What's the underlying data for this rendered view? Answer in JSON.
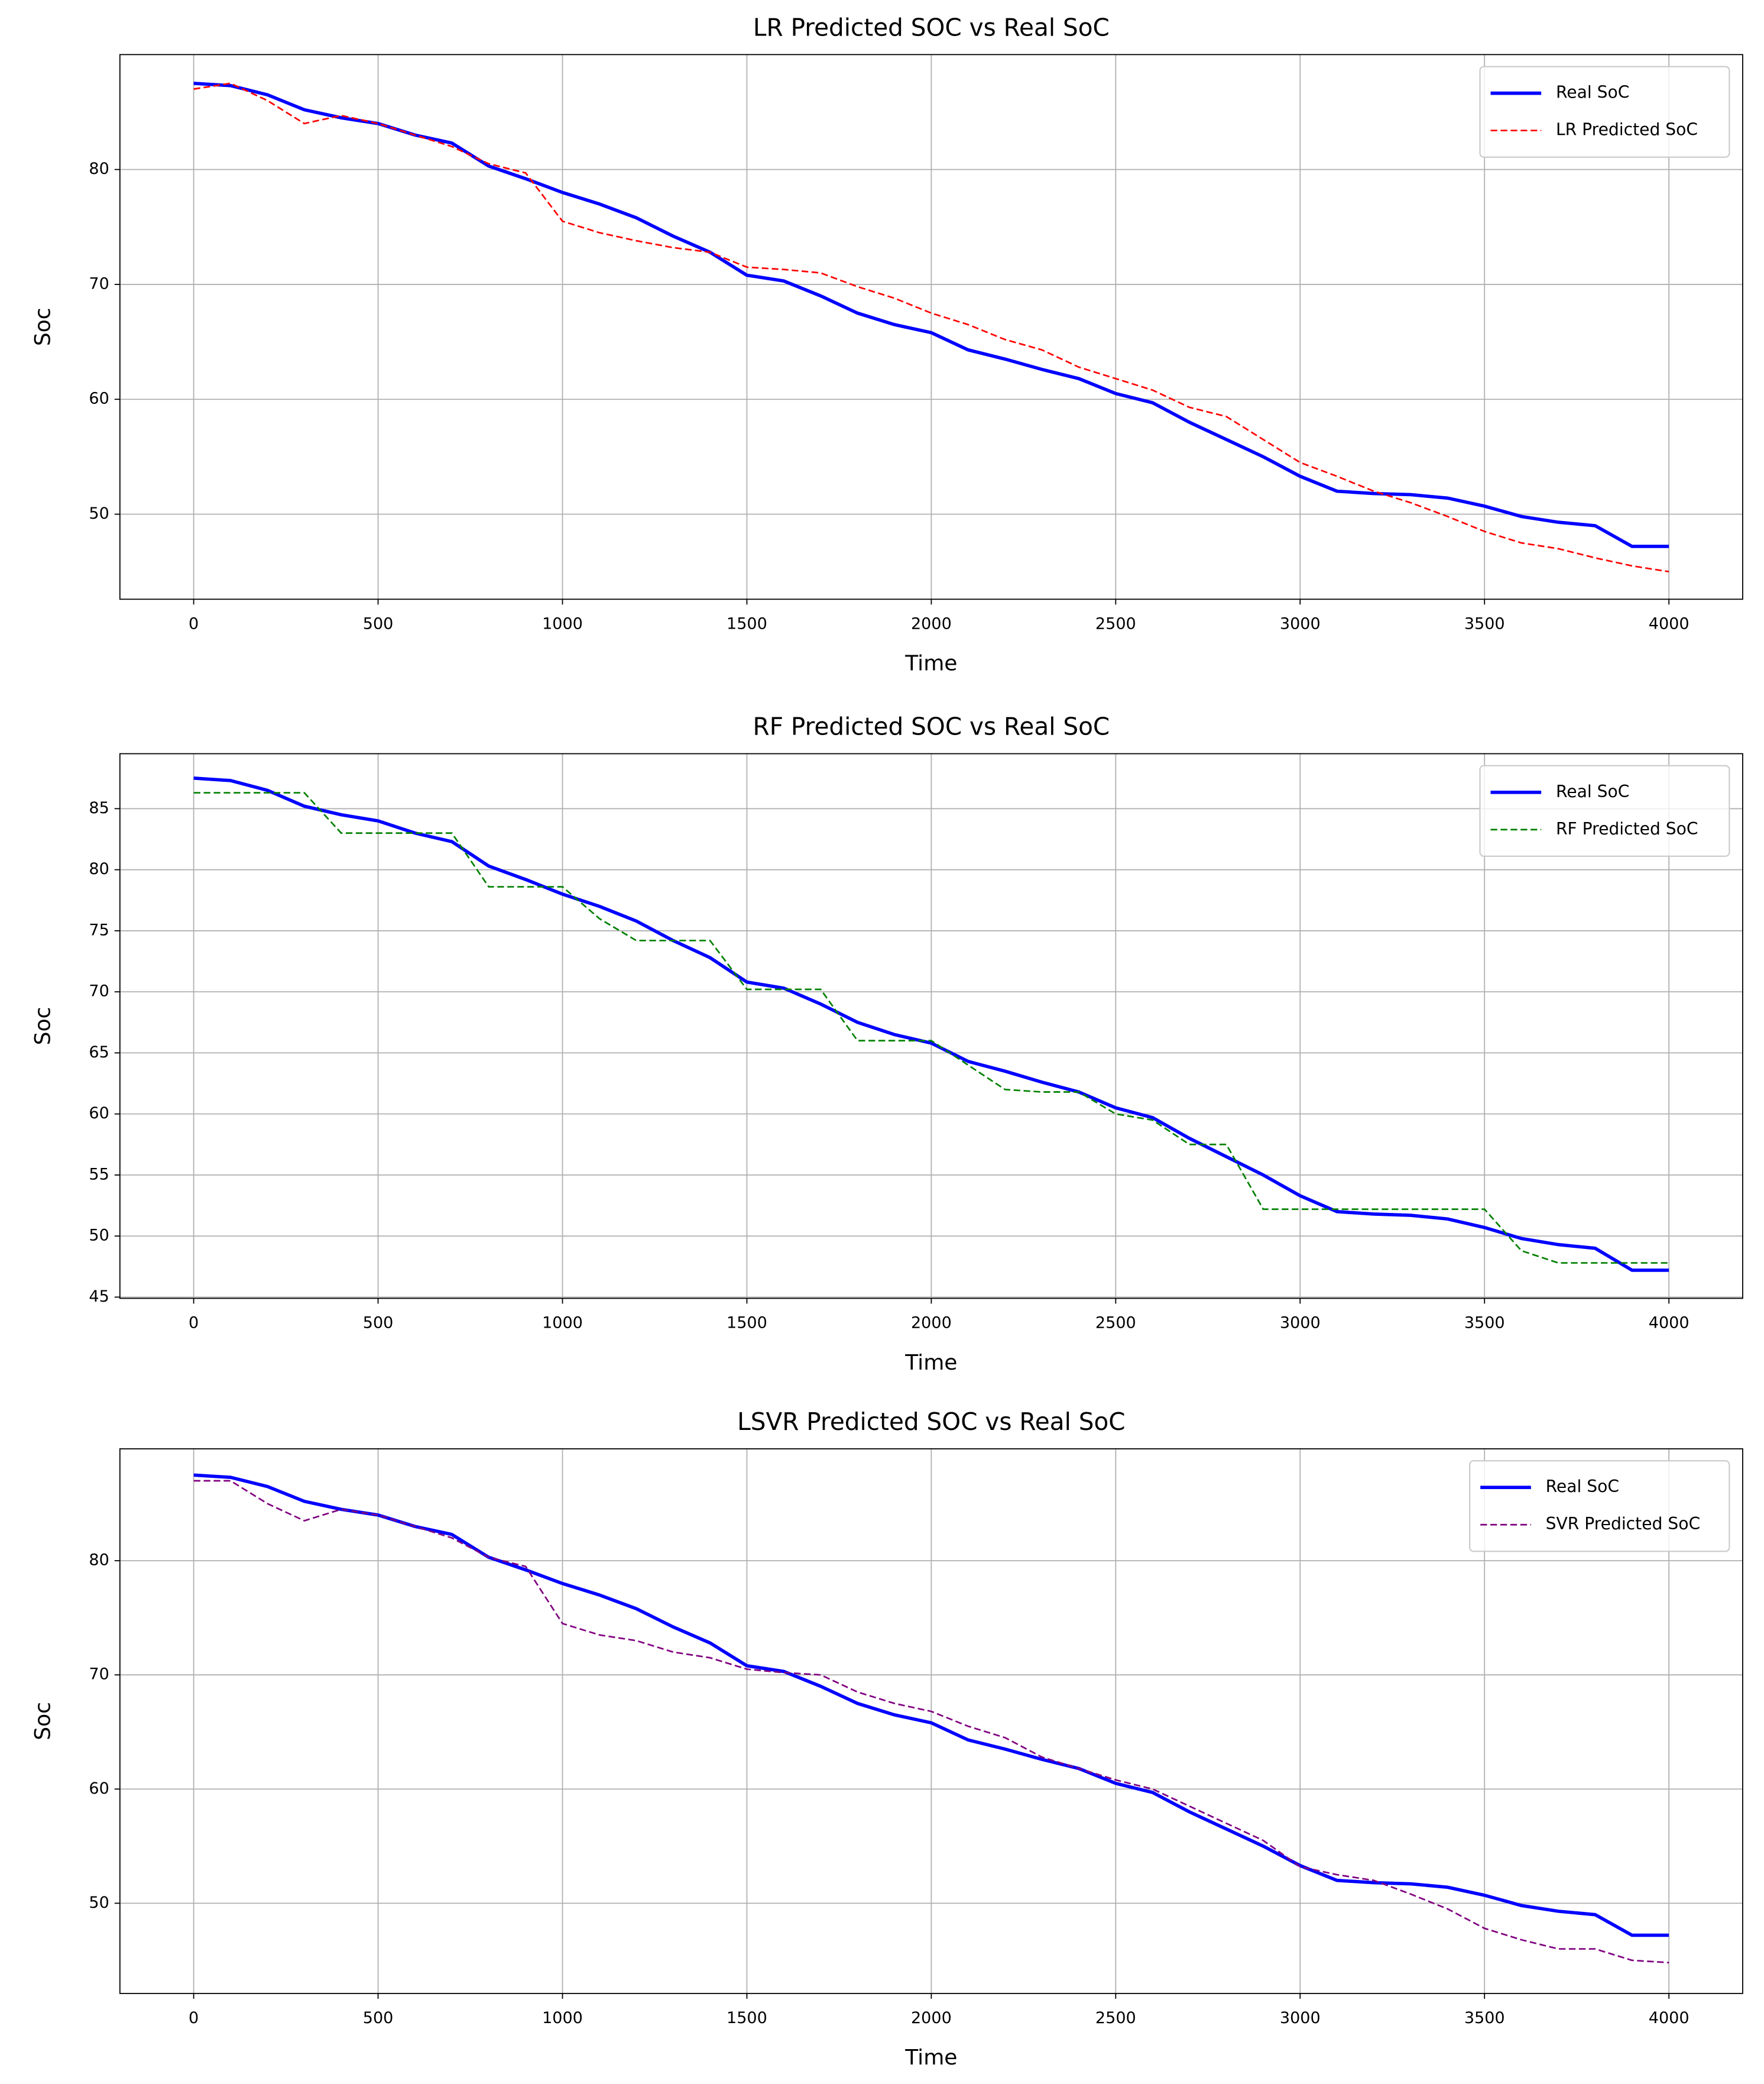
{
  "chart_data": [
    {
      "type": "line",
      "title": "LR Predicted SOC vs Real SoC",
      "x_label": "Time",
      "y_label": "Soc",
      "x": [
        0,
        100,
        200,
        300,
        400,
        500,
        600,
        700,
        800,
        900,
        1000,
        1100,
        1200,
        1300,
        1400,
        1500,
        1600,
        1700,
        1800,
        1900,
        2000,
        2100,
        2200,
        2300,
        2400,
        2500,
        2600,
        2700,
        2800,
        2900,
        3000,
        3100,
        3200,
        3300,
        3400,
        3500,
        3600,
        3700,
        3800,
        3900,
        4000
      ],
      "series": [
        {
          "name": "Real SoC",
          "color": "#0000ff",
          "style": "solid",
          "values": [
            87.5,
            87.3,
            86.5,
            85.2,
            84.5,
            84.0,
            83.0,
            82.3,
            80.3,
            79.2,
            78.0,
            77.0,
            75.8,
            74.2,
            72.8,
            70.8,
            70.3,
            69.0,
            67.5,
            66.5,
            65.8,
            64.3,
            63.5,
            62.6,
            61.8,
            60.5,
            59.7,
            58.0,
            56.5,
            55.0,
            53.3,
            52.0,
            51.8,
            51.7,
            51.4,
            50.7,
            49.8,
            49.3,
            49.0,
            47.2,
            47.2
          ]
        },
        {
          "name": "LR Predicted SoC",
          "color": "#ff0000",
          "style": "dashed",
          "values": [
            87.0,
            87.5,
            86.0,
            84.0,
            84.7,
            84.0,
            83.0,
            82.0,
            80.5,
            79.7,
            75.5,
            74.5,
            73.8,
            73.2,
            72.8,
            71.5,
            71.3,
            71.0,
            69.8,
            68.8,
            67.5,
            66.5,
            65.2,
            64.3,
            62.8,
            61.8,
            60.8,
            59.3,
            58.5,
            56.5,
            54.5,
            53.3,
            52.0,
            51.0,
            49.8,
            48.5,
            47.5,
            47.0,
            46.2,
            45.5,
            45.0
          ]
        }
      ],
      "xlim": [
        -200,
        4200
      ],
      "xticks": [
        0,
        500,
        1000,
        1500,
        2000,
        2500,
        3000,
        3500,
        4000
      ],
      "ylim": [
        42.6,
        90
      ],
      "yticks": [
        50,
        60,
        70,
        80
      ],
      "grid": true,
      "legend": "upper right"
    },
    {
      "type": "line",
      "title": "RF Predicted SOC vs Real SoC",
      "x_label": "Time",
      "y_label": "Soc",
      "x": [
        0,
        100,
        200,
        300,
        400,
        500,
        600,
        700,
        800,
        900,
        1000,
        1100,
        1200,
        1300,
        1400,
        1500,
        1600,
        1700,
        1800,
        1900,
        2000,
        2100,
        2200,
        2300,
        2400,
        2500,
        2600,
        2700,
        2800,
        2900,
        3000,
        3100,
        3200,
        3300,
        3400,
        3500,
        3600,
        3700,
        3800,
        3900,
        4000
      ],
      "series": [
        {
          "name": "Real SoC",
          "color": "#0000ff",
          "style": "solid",
          "values": [
            87.5,
            87.3,
            86.5,
            85.2,
            84.5,
            84.0,
            83.0,
            82.3,
            80.3,
            79.2,
            78.0,
            77.0,
            75.8,
            74.2,
            72.8,
            70.8,
            70.3,
            69.0,
            67.5,
            66.5,
            65.8,
            64.3,
            63.5,
            62.6,
            61.8,
            60.5,
            59.7,
            58.0,
            56.5,
            55.0,
            53.3,
            52.0,
            51.8,
            51.7,
            51.4,
            50.7,
            49.8,
            49.3,
            49.0,
            47.2,
            47.2
          ]
        },
        {
          "name": "RF Predicted SoC",
          "color": "#008000",
          "style": "dashed",
          "values": [
            86.3,
            86.3,
            86.3,
            86.3,
            83.0,
            83.0,
            83.0,
            83.0,
            78.6,
            78.6,
            78.6,
            76.0,
            74.2,
            74.2,
            74.2,
            70.2,
            70.2,
            70.2,
            66.0,
            66.0,
            66.0,
            64.0,
            62.0,
            61.8,
            61.8,
            60.0,
            59.5,
            57.5,
            57.5,
            52.2,
            52.2,
            52.2,
            52.2,
            52.2,
            52.2,
            52.2,
            48.8,
            47.8,
            47.8,
            47.8,
            47.8
          ]
        }
      ],
      "xlim": [
        -200,
        4200
      ],
      "xticks": [
        0,
        500,
        1000,
        1500,
        2000,
        2500,
        3000,
        3500,
        4000
      ],
      "ylim": [
        44.9,
        89.5
      ],
      "yticks": [
        45,
        50,
        55,
        60,
        65,
        70,
        75,
        80,
        85
      ],
      "grid": true,
      "legend": "upper right"
    },
    {
      "type": "line",
      "title": "LSVR Predicted SOC vs Real SoC",
      "x_label": "Time",
      "y_label": "Soc",
      "x": [
        0,
        100,
        200,
        300,
        400,
        500,
        600,
        700,
        800,
        900,
        1000,
        1100,
        1200,
        1300,
        1400,
        1500,
        1600,
        1700,
        1800,
        1900,
        2000,
        2100,
        2200,
        2300,
        2400,
        2500,
        2600,
        2700,
        2800,
        2900,
        3000,
        3100,
        3200,
        3300,
        3400,
        3500,
        3600,
        3700,
        3800,
        3900,
        4000
      ],
      "series": [
        {
          "name": "Real SoC",
          "color": "#0000ff",
          "style": "solid",
          "values": [
            87.5,
            87.3,
            86.5,
            85.2,
            84.5,
            84.0,
            83.0,
            82.3,
            80.3,
            79.2,
            78.0,
            77.0,
            75.8,
            74.2,
            72.8,
            70.8,
            70.3,
            69.0,
            67.5,
            66.5,
            65.8,
            64.3,
            63.5,
            62.6,
            61.8,
            60.5,
            59.7,
            58.0,
            56.5,
            55.0,
            53.3,
            52.0,
            51.8,
            51.7,
            51.4,
            50.7,
            49.8,
            49.3,
            49.0,
            47.2,
            47.2
          ]
        },
        {
          "name": "SVR Predicted SoC",
          "color": "#800080",
          "style": "dashed",
          "values": [
            87.0,
            87.0,
            85.0,
            83.5,
            84.5,
            84.0,
            83.0,
            82.0,
            80.3,
            79.5,
            74.5,
            73.5,
            73.0,
            72.0,
            71.5,
            70.5,
            70.2,
            70.0,
            68.5,
            67.5,
            66.8,
            65.5,
            64.5,
            62.8,
            61.8,
            60.8,
            60.0,
            58.5,
            57.0,
            55.5,
            53.2,
            52.5,
            52.0,
            50.8,
            49.5,
            47.8,
            46.8,
            46.0,
            46.0,
            45.0,
            44.8
          ]
        }
      ],
      "xlim": [
        -200,
        4200
      ],
      "xticks": [
        0,
        500,
        1000,
        1500,
        2000,
        2500,
        3000,
        3500,
        4000
      ],
      "ylim": [
        42.1,
        89.8
      ],
      "yticks": [
        50,
        60,
        70,
        80
      ],
      "grid": true,
      "legend": "upper right"
    }
  ]
}
